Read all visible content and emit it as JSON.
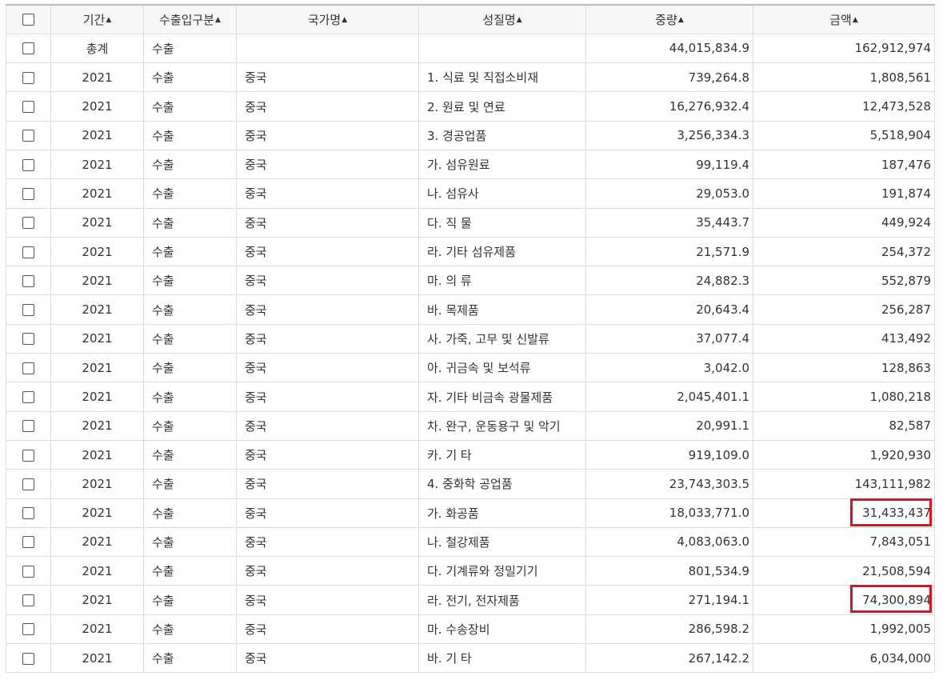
{
  "headers": {
    "period": "기간",
    "trade_type": "수출입구분",
    "country": "국가명",
    "property": "성질명",
    "weight": "중량",
    "amount": "금액"
  },
  "sort_icon": "sort-icon",
  "highlight_color": "#e0101f",
  "rows": [
    {
      "period": "총계",
      "trade_type": "수출",
      "country": "",
      "property": "",
      "weight": "44,015,834.9",
      "amount": "162,912,974",
      "highlighted": false
    },
    {
      "period": "2021",
      "trade_type": "수출",
      "country": "중국",
      "property": "1. 식료 및 직접소비재",
      "weight": "739,264.8",
      "amount": "1,808,561",
      "highlighted": false
    },
    {
      "period": "2021",
      "trade_type": "수출",
      "country": "중국",
      "property": "2. 원료 및 연료",
      "weight": "16,276,932.4",
      "amount": "12,473,528",
      "highlighted": false
    },
    {
      "period": "2021",
      "trade_type": "수출",
      "country": "중국",
      "property": "3. 경공업품",
      "weight": "3,256,334.3",
      "amount": "5,518,904",
      "highlighted": false
    },
    {
      "period": "2021",
      "trade_type": "수출",
      "country": "중국",
      "property": "가. 섬유원료",
      "weight": "99,119.4",
      "amount": "187,476",
      "highlighted": false
    },
    {
      "period": "2021",
      "trade_type": "수출",
      "country": "중국",
      "property": "나. 섬유사",
      "weight": "29,053.0",
      "amount": "191,874",
      "highlighted": false
    },
    {
      "period": "2021",
      "trade_type": "수출",
      "country": "중국",
      "property": "다. 직 물",
      "weight": "35,443.7",
      "amount": "449,924",
      "highlighted": false
    },
    {
      "period": "2021",
      "trade_type": "수출",
      "country": "중국",
      "property": "라. 기타 섬유제품",
      "weight": "21,571.9",
      "amount": "254,372",
      "highlighted": false
    },
    {
      "period": "2021",
      "trade_type": "수출",
      "country": "중국",
      "property": "마. 의 류",
      "weight": "24,882.3",
      "amount": "552,879",
      "highlighted": false
    },
    {
      "period": "2021",
      "trade_type": "수출",
      "country": "중국",
      "property": "바. 목제품",
      "weight": "20,643.4",
      "amount": "256,287",
      "highlighted": false
    },
    {
      "period": "2021",
      "trade_type": "수출",
      "country": "중국",
      "property": "사. 가죽, 고무 및 신발류",
      "weight": "37,077.4",
      "amount": "413,492",
      "highlighted": false
    },
    {
      "period": "2021",
      "trade_type": "수출",
      "country": "중국",
      "property": "아. 귀금속 및 보석류",
      "weight": "3,042.0",
      "amount": "128,863",
      "highlighted": false
    },
    {
      "period": "2021",
      "trade_type": "수출",
      "country": "중국",
      "property": "자. 기타 비금속 광물제품",
      "weight": "2,045,401.1",
      "amount": "1,080,218",
      "highlighted": false
    },
    {
      "period": "2021",
      "trade_type": "수출",
      "country": "중국",
      "property": "차. 완구, 운동용구 및 악기",
      "weight": "20,991.1",
      "amount": "82,587",
      "highlighted": false
    },
    {
      "period": "2021",
      "trade_type": "수출",
      "country": "중국",
      "property": "카. 기 타",
      "weight": "919,109.0",
      "amount": "1,920,930",
      "highlighted": false
    },
    {
      "period": "2021",
      "trade_type": "수출",
      "country": "중국",
      "property": "4. 중화학 공업품",
      "weight": "23,743,303.5",
      "amount": "143,111,982",
      "highlighted": false
    },
    {
      "period": "2021",
      "trade_type": "수출",
      "country": "중국",
      "property": "가. 화공품",
      "weight": "18,033,771.0",
      "amount": "31,433,437",
      "highlighted": true
    },
    {
      "period": "2021",
      "trade_type": "수출",
      "country": "중국",
      "property": "나. 철강제품",
      "weight": "4,083,063.0",
      "amount": "7,843,051",
      "highlighted": false
    },
    {
      "period": "2021",
      "trade_type": "수출",
      "country": "중국",
      "property": "다. 기계류와 정밀기기",
      "weight": "801,534.9",
      "amount": "21,508,594",
      "highlighted": false
    },
    {
      "period": "2021",
      "trade_type": "수출",
      "country": "중국",
      "property": "라. 전기, 전자제품",
      "weight": "271,194.1",
      "amount": "74,300,894",
      "highlighted": true
    },
    {
      "period": "2021",
      "trade_type": "수출",
      "country": "중국",
      "property": "마. 수송장비",
      "weight": "286,598.2",
      "amount": "1,992,005",
      "highlighted": false
    },
    {
      "period": "2021",
      "trade_type": "수출",
      "country": "중국",
      "property": "바. 기 타",
      "weight": "267,142.2",
      "amount": "6,034,000",
      "highlighted": false
    }
  ]
}
